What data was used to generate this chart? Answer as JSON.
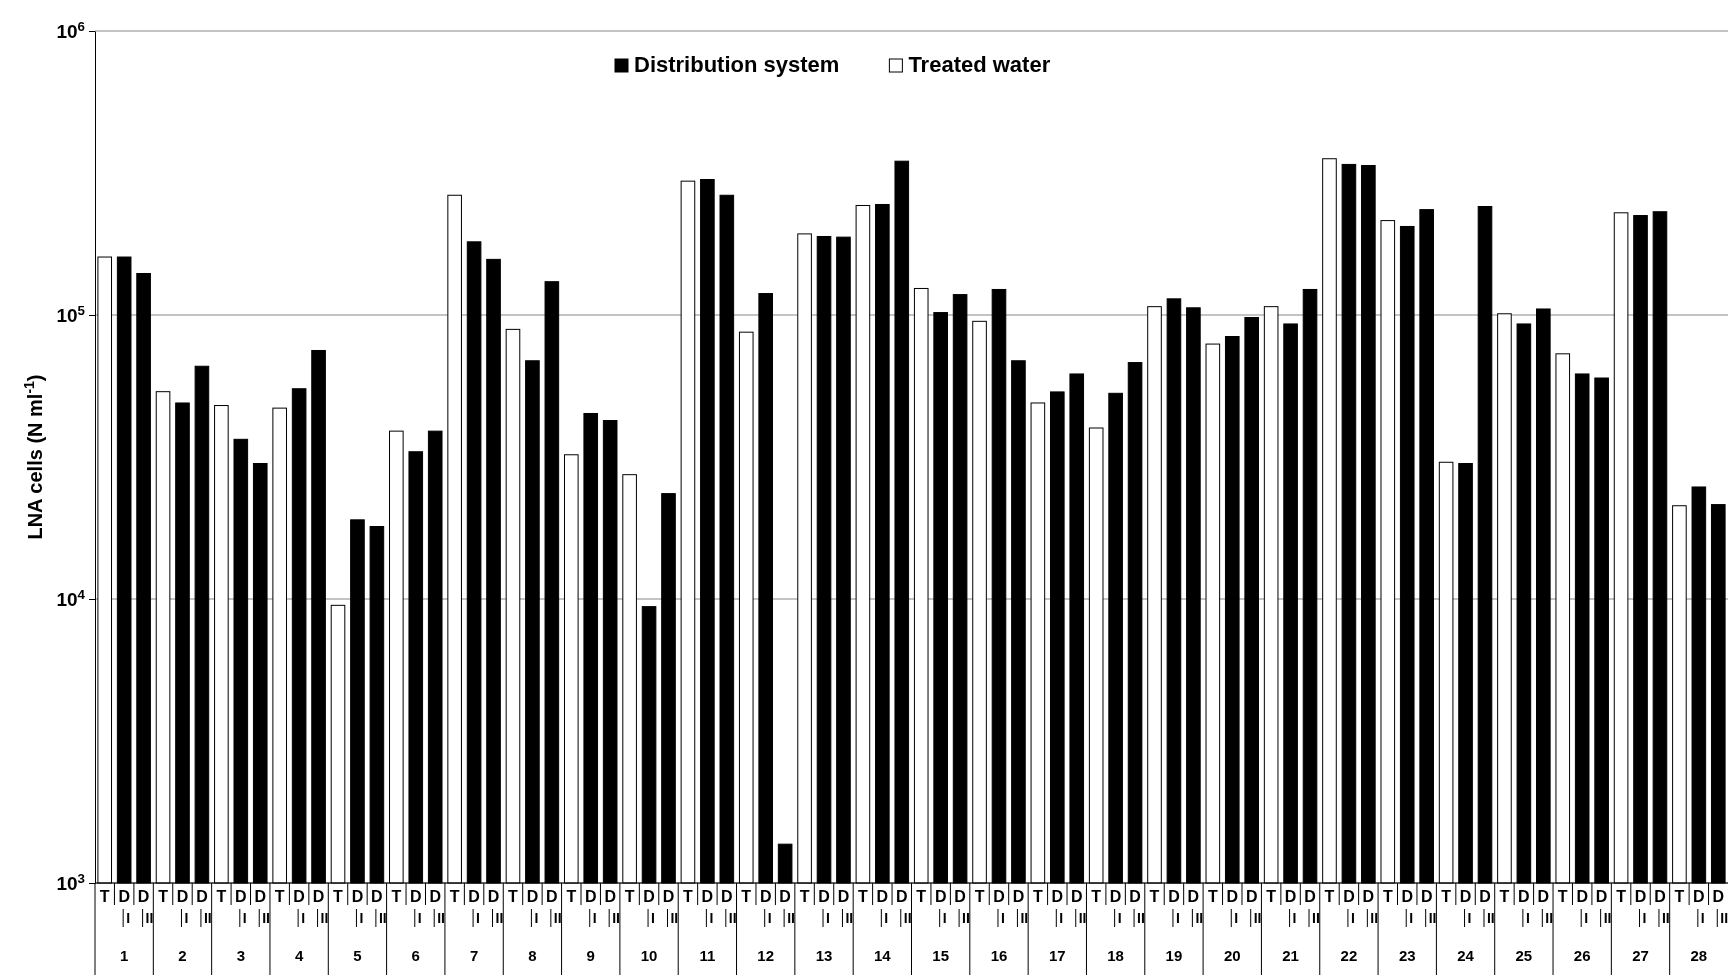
{
  "chart_data": {
    "type": "bar",
    "ylabel": "LNA cells (N ml$^{-1}$)",
    "log": true,
    "ylim": [
      1000,
      1000000
    ],
    "yticks": [
      {
        "value": 1000,
        "label": "10$^{3}$"
      },
      {
        "value": 10000,
        "label": "10$^{4}$"
      },
      {
        "value": 100000,
        "label": "10$^{5}$"
      },
      {
        "value": 1000000,
        "label": "10$^{6}$"
      }
    ],
    "grid": "y",
    "legend": "top",
    "categories": [
      "T",
      "D I",
      "D II",
      "T",
      "D I",
      "D II",
      "T",
      "D I",
      "D II",
      "T",
      "D I",
      "D II",
      "T",
      "D I",
      "D II",
      "T",
      "D I",
      "D II",
      "T",
      "D I",
      "D II",
      "T",
      "D I",
      "D II",
      "T",
      "D I",
      "D II",
      "T",
      "D I",
      "D II",
      "T",
      "D I",
      "D II",
      "T",
      "D I",
      "D II",
      "T",
      "D I",
      "D II",
      "T",
      "D I",
      "D II",
      "T",
      "D I",
      "D II",
      "T",
      "D I",
      "D II",
      "T",
      "D I",
      "D II",
      "T",
      "D I",
      "D II",
      "T",
      "D I",
      "D II",
      "T",
      "D I",
      "D II",
      "T",
      "D I",
      "D II",
      "T",
      "D I",
      "D II",
      "T",
      "D I",
      "D II",
      "T",
      "D I",
      "D II",
      "T",
      "D I",
      "D II",
      "T",
      "D I",
      "D II",
      "T",
      "D I",
      "D II",
      "T",
      "D I",
      "D II"
    ],
    "annotations": [
      "1",
      "2",
      "3",
      "4",
      "5",
      "6",
      "7",
      "8",
      "9",
      "10",
      "11",
      "12",
      "13",
      "14",
      "15",
      "16",
      "17",
      "18",
      "19",
      "20",
      "21",
      "22",
      "23",
      "24",
      "25",
      "26",
      "27",
      "28"
    ],
    "series": [
      {
        "name": "Distribution system",
        "color": "#000000",
        "values": [
          null,
          160000,
          140000,
          null,
          49000,
          66000,
          null,
          36500,
          30000,
          null,
          55000,
          75000,
          null,
          19000,
          18000,
          null,
          33000,
          39000,
          null,
          181000,
          157000,
          null,
          69000,
          131000,
          null,
          45000,
          42500,
          null,
          9400,
          23500,
          null,
          300000,
          264000,
          null,
          119000,
          1370,
          null,
          189000,
          188000,
          null,
          245000,
          348000,
          null,
          102000,
          118000,
          null,
          123000,
          69000,
          null,
          53600,
          62000,
          null,
          53000,
          68000,
          null,
          114000,
          106000,
          null,
          84000,
          98000,
          null,
          93000,
          123000,
          null,
          339000,
          336000,
          null,
          205000,
          235000,
          null,
          30000,
          241000,
          null,
          93000,
          105000,
          null,
          62000,
          60000,
          null,
          224000,
          231000,
          null,
          24800,
          21500
        ]
      },
      {
        "name": "Treated water",
        "color": "#ffffff",
        "values": [
          160000,
          null,
          null,
          53700,
          null,
          null,
          48000,
          null,
          null,
          47000,
          null,
          null,
          9500,
          null,
          null,
          39000,
          null,
          null,
          264000,
          null,
          null,
          89000,
          null,
          null,
          32200,
          null,
          null,
          27400,
          null,
          null,
          296000,
          null,
          null,
          87000,
          null,
          null,
          193000,
          null,
          null,
          243000,
          null,
          null,
          124000,
          null,
          null,
          95000,
          null,
          null,
          49000,
          null,
          null,
          40000,
          null,
          null,
          107000,
          null,
          null,
          79000,
          null,
          null,
          107000,
          null,
          null,
          355000,
          null,
          null,
          215000,
          null,
          null,
          30300,
          null,
          null,
          101000,
          null,
          null,
          73000,
          null,
          null,
          229000,
          null,
          null,
          21300,
          null,
          null
        ]
      }
    ]
  }
}
